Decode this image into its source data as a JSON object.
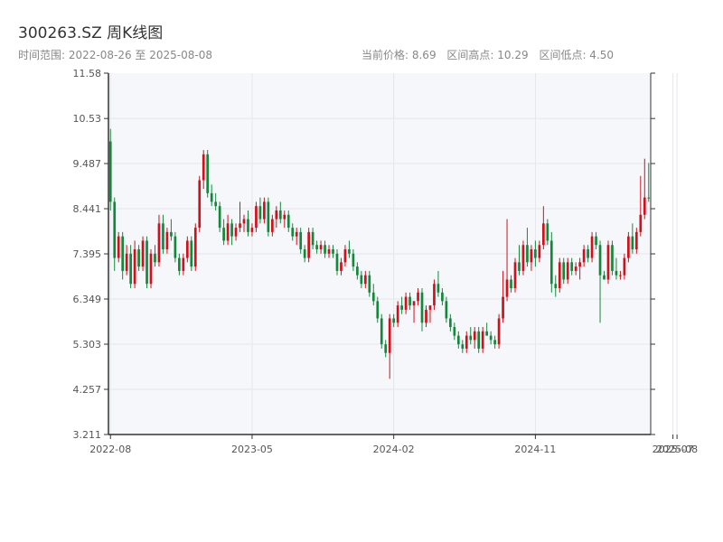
{
  "header": {
    "title": "300263.SZ 周K线图",
    "range_label": "时间范围: 2022-08-26 至 2025-08-08",
    "current_price": "当前价格: 8.69",
    "range_high": "区间高点: 10.29",
    "range_low": "区间低点: 4.50"
  },
  "colors": {
    "up": "#d0101b",
    "down": "#12893a",
    "plot_bg": "#f6f7fa",
    "grid": "#e4e6ec",
    "axis": "#333333"
  },
  "chart_data": {
    "type": "candlestick",
    "title": "300263.SZ 周K线图",
    "ylim": [
      3.211,
      11.58
    ],
    "y_ticks": [
      "3.211",
      "4.257",
      "5.303",
      "6.349",
      "7.395",
      "8.441",
      "9.487",
      "10.53",
      "11.58"
    ],
    "x_ticks": [
      {
        "label": "2022-08",
        "week": 0
      },
      {
        "label": "2023-05",
        "week": 35
      },
      {
        "label": "2024-02",
        "week": 70
      },
      {
        "label": "2024-11",
        "week": 105
      },
      {
        "label": "2025-07",
        "week": 139
      },
      {
        "label": "2025-08",
        "week": 140
      }
    ],
    "grid": true,
    "start_date": "2022-08-26",
    "end_date": "2025-08-08",
    "weeks": 141,
    "ohlc": [
      [
        10.0,
        10.29,
        8.4,
        8.6
      ],
      [
        8.6,
        8.7,
        7.0,
        7.3
      ],
      [
        7.3,
        7.9,
        7.2,
        7.8
      ],
      [
        7.8,
        7.9,
        6.8,
        7.0
      ],
      [
        7.0,
        7.6,
        6.9,
        7.4
      ],
      [
        7.4,
        7.6,
        6.6,
        6.7
      ],
      [
        6.7,
        7.7,
        6.6,
        7.5
      ],
      [
        7.5,
        7.6,
        7.0,
        7.1
      ],
      [
        7.1,
        7.8,
        7.0,
        7.7
      ],
      [
        7.7,
        7.8,
        6.6,
        6.7
      ],
      [
        6.7,
        7.5,
        6.6,
        7.4
      ],
      [
        7.4,
        7.6,
        7.1,
        7.2
      ],
      [
        7.2,
        8.3,
        7.1,
        8.1
      ],
      [
        8.1,
        8.3,
        7.4,
        7.5
      ],
      [
        7.5,
        8.0,
        7.4,
        7.9
      ],
      [
        7.9,
        8.2,
        7.7,
        7.8
      ],
      [
        7.8,
        7.9,
        7.2,
        7.3
      ],
      [
        7.3,
        7.4,
        6.9,
        7.0
      ],
      [
        7.0,
        7.4,
        6.9,
        7.3
      ],
      [
        7.3,
        7.8,
        7.2,
        7.7
      ],
      [
        7.7,
        7.8,
        7.0,
        7.1
      ],
      [
        7.1,
        8.1,
        7.0,
        8.0
      ],
      [
        8.0,
        9.2,
        7.9,
        9.1
      ],
      [
        9.1,
        9.8,
        8.9,
        9.7
      ],
      [
        9.7,
        9.8,
        8.7,
        8.8
      ],
      [
        8.8,
        9.0,
        8.5,
        8.6
      ],
      [
        8.6,
        8.8,
        8.4,
        8.5
      ],
      [
        8.5,
        8.6,
        7.9,
        8.0
      ],
      [
        8.0,
        8.2,
        7.6,
        7.7
      ],
      [
        7.7,
        8.3,
        7.6,
        8.1
      ],
      [
        8.1,
        8.2,
        7.6,
        7.8
      ],
      [
        7.8,
        8.1,
        7.7,
        8.0
      ],
      [
        8.0,
        8.6,
        7.9,
        8.1
      ],
      [
        8.1,
        8.3,
        7.9,
        8.2
      ],
      [
        8.2,
        8.4,
        7.8,
        7.9
      ],
      [
        7.9,
        8.1,
        7.8,
        8.0
      ],
      [
        8.0,
        8.6,
        7.9,
        8.5
      ],
      [
        8.5,
        8.7,
        8.1,
        8.2
      ],
      [
        8.2,
        8.7,
        8.1,
        8.6
      ],
      [
        8.6,
        8.7,
        7.8,
        7.9
      ],
      [
        7.9,
        8.3,
        7.8,
        8.2
      ],
      [
        8.2,
        8.5,
        8.0,
        8.4
      ],
      [
        8.4,
        8.6,
        8.1,
        8.2
      ],
      [
        8.2,
        8.4,
        8.0,
        8.3
      ],
      [
        8.3,
        8.4,
        7.9,
        8.0
      ],
      [
        8.0,
        8.1,
        7.7,
        7.8
      ],
      [
        7.8,
        8.0,
        7.6,
        7.9
      ],
      [
        7.9,
        8.0,
        7.4,
        7.5
      ],
      [
        7.5,
        7.6,
        7.2,
        7.3
      ],
      [
        7.3,
        8.0,
        7.2,
        7.9
      ],
      [
        7.9,
        8.0,
        7.5,
        7.6
      ],
      [
        7.6,
        7.7,
        7.4,
        7.5
      ],
      [
        7.5,
        7.7,
        7.4,
        7.6
      ],
      [
        7.6,
        7.7,
        7.3,
        7.4
      ],
      [
        7.4,
        7.6,
        7.3,
        7.5
      ],
      [
        7.5,
        7.6,
        7.3,
        7.4
      ],
      [
        7.4,
        7.5,
        6.9,
        7.0
      ],
      [
        7.0,
        7.3,
        6.9,
        7.2
      ],
      [
        7.2,
        7.6,
        7.1,
        7.5
      ],
      [
        7.5,
        7.7,
        7.3,
        7.4
      ],
      [
        7.4,
        7.5,
        7.0,
        7.1
      ],
      [
        7.1,
        7.2,
        6.8,
        6.9
      ],
      [
        6.9,
        7.0,
        6.6,
        6.7
      ],
      [
        6.7,
        7.0,
        6.6,
        6.9
      ],
      [
        6.9,
        7.0,
        6.4,
        6.5
      ],
      [
        6.5,
        6.7,
        6.2,
        6.3
      ],
      [
        6.3,
        6.4,
        5.8,
        5.9
      ],
      [
        5.9,
        6.0,
        5.2,
        5.3
      ],
      [
        5.3,
        5.4,
        5.0,
        5.1
      ],
      [
        5.1,
        6.0,
        4.5,
        5.9
      ],
      [
        5.9,
        6.0,
        5.7,
        5.8
      ],
      [
        5.8,
        6.3,
        5.7,
        6.2
      ],
      [
        6.2,
        6.4,
        6.0,
        6.1
      ],
      [
        6.1,
        6.5,
        6.0,
        6.4
      ],
      [
        6.4,
        6.5,
        6.1,
        6.2
      ],
      [
        6.2,
        6.3,
        5.8,
        6.3
      ],
      [
        6.3,
        6.6,
        6.2,
        6.5
      ],
      [
        6.5,
        6.6,
        5.6,
        5.8
      ],
      [
        5.8,
        6.2,
        5.7,
        6.1
      ],
      [
        6.1,
        6.2,
        5.8,
        6.2
      ],
      [
        6.2,
        6.8,
        6.1,
        6.7
      ],
      [
        6.7,
        7.0,
        6.4,
        6.5
      ],
      [
        6.5,
        6.6,
        6.2,
        6.3
      ],
      [
        6.3,
        6.4,
        5.8,
        5.9
      ],
      [
        5.9,
        6.0,
        5.6,
        5.7
      ],
      [
        5.7,
        5.8,
        5.4,
        5.5
      ],
      [
        5.5,
        5.6,
        5.2,
        5.3
      ],
      [
        5.3,
        5.4,
        5.1,
        5.2
      ],
      [
        5.2,
        5.6,
        5.1,
        5.5
      ],
      [
        5.5,
        5.7,
        5.3,
        5.4
      ],
      [
        5.4,
        5.7,
        5.2,
        5.6
      ],
      [
        5.6,
        5.7,
        5.1,
        5.2
      ],
      [
        5.2,
        5.7,
        5.1,
        5.6
      ],
      [
        5.6,
        5.8,
        5.5,
        5.5
      ],
      [
        5.5,
        5.6,
        5.3,
        5.4
      ],
      [
        5.4,
        5.5,
        5.2,
        5.3
      ],
      [
        5.3,
        6.0,
        5.2,
        5.9
      ],
      [
        5.9,
        7.0,
        5.8,
        6.4
      ],
      [
        6.4,
        8.2,
        6.3,
        6.8
      ],
      [
        6.8,
        6.9,
        6.5,
        6.6
      ],
      [
        6.6,
        7.3,
        6.5,
        7.2
      ],
      [
        7.2,
        7.6,
        6.9,
        7.0
      ],
      [
        7.0,
        7.7,
        6.9,
        7.6
      ],
      [
        7.6,
        8.0,
        7.1,
        7.2
      ],
      [
        7.2,
        7.6,
        7.0,
        7.5
      ],
      [
        7.5,
        7.7,
        7.1,
        7.3
      ],
      [
        7.3,
        7.7,
        7.2,
        7.6
      ],
      [
        7.6,
        8.5,
        7.5,
        8.1
      ],
      [
        8.1,
        8.2,
        7.6,
        7.7
      ],
      [
        7.7,
        7.9,
        6.5,
        6.7
      ],
      [
        6.7,
        6.9,
        6.4,
        6.6
      ],
      [
        6.6,
        7.3,
        6.5,
        7.2
      ],
      [
        7.2,
        7.3,
        6.7,
        6.8
      ],
      [
        6.8,
        7.3,
        6.7,
        7.2
      ],
      [
        7.2,
        7.3,
        6.9,
        7.0
      ],
      [
        7.0,
        7.2,
        6.9,
        7.1
      ],
      [
        7.1,
        7.3,
        6.8,
        7.2
      ],
      [
        7.2,
        7.6,
        7.1,
        7.5
      ],
      [
        7.5,
        7.6,
        7.2,
        7.3
      ],
      [
        7.3,
        7.9,
        7.2,
        7.8
      ],
      [
        7.8,
        7.9,
        7.5,
        7.6
      ],
      [
        7.6,
        7.7,
        5.8,
        6.9
      ],
      [
        6.9,
        7.0,
        6.8,
        6.8
      ],
      [
        6.8,
        7.7,
        6.7,
        7.6
      ],
      [
        7.6,
        7.7,
        6.9,
        7.0
      ],
      [
        7.0,
        7.3,
        6.8,
        6.9
      ],
      [
        6.9,
        7.0,
        6.8,
        6.9
      ],
      [
        6.9,
        7.4,
        6.8,
        7.3
      ],
      [
        7.3,
        7.9,
        7.2,
        7.8
      ],
      [
        7.8,
        8.1,
        7.4,
        7.5
      ],
      [
        7.5,
        8.0,
        7.4,
        7.9
      ],
      [
        7.9,
        9.2,
        7.8,
        8.3
      ],
      [
        8.3,
        9.6,
        8.2,
        8.7
      ],
      [
        8.7,
        9.5,
        8.6,
        8.69
      ]
    ]
  }
}
